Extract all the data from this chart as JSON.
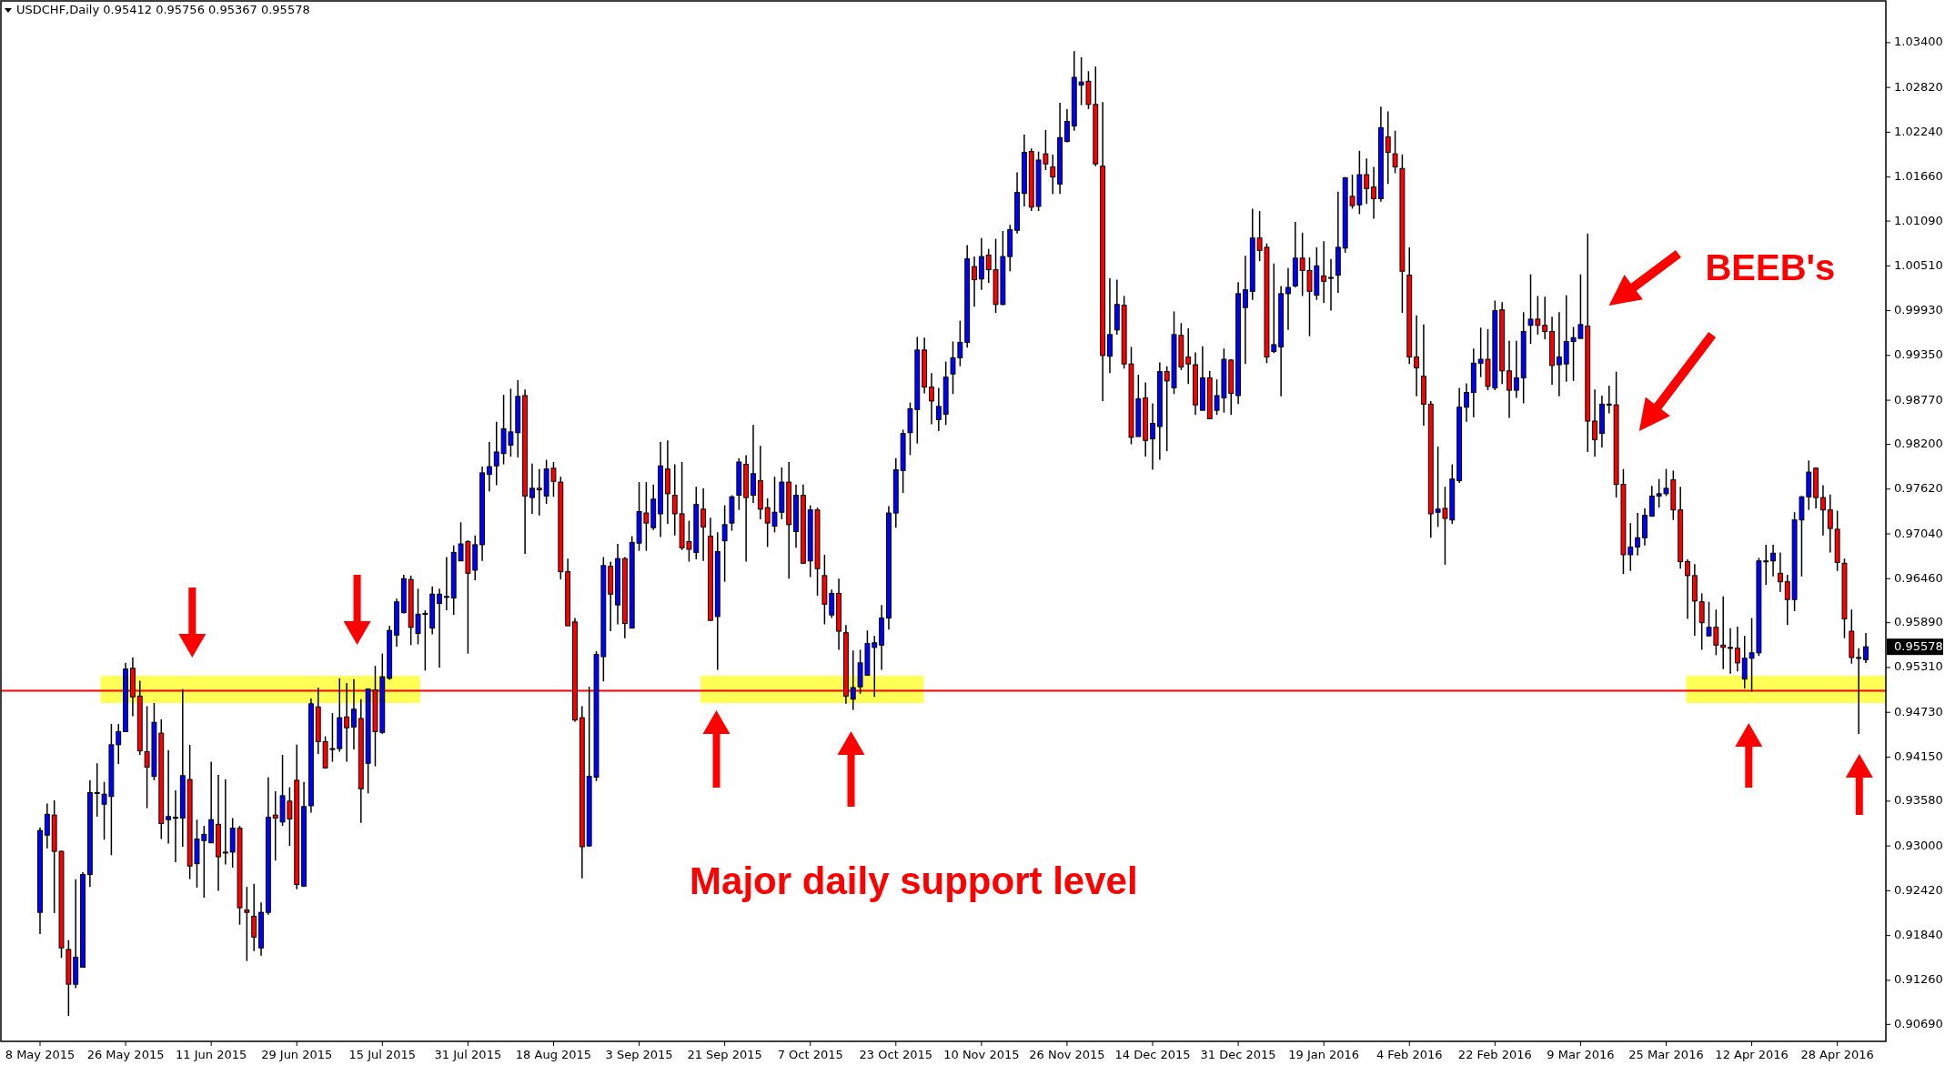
{
  "chart_data": {
    "type": "candlestick",
    "title": "USDCHF,Daily 0.95412 0.95756 0.95367 0.95578",
    "categories": [
      "8 May 2015",
      null,
      null,
      null,
      null,
      null,
      null,
      null,
      null,
      null,
      null,
      null,
      "26 May 2015",
      null,
      null,
      null,
      null,
      null,
      null,
      null,
      null,
      null,
      null,
      null,
      "11 Jun 2015",
      null,
      null,
      null,
      null,
      null,
      null,
      null,
      null,
      null,
      null,
      null,
      "29 Jun 2015",
      null,
      null,
      null,
      null,
      null,
      null,
      null,
      null,
      null,
      null,
      null,
      "15 Jul 2015",
      null,
      null,
      null,
      null,
      null,
      null,
      null,
      null,
      null,
      null,
      null,
      "31 Jul 2015",
      null,
      null,
      null,
      null,
      null,
      null,
      null,
      null,
      null,
      null,
      null,
      "18 Aug 2015",
      null,
      null,
      null,
      null,
      null,
      null,
      null,
      null,
      null,
      null,
      null,
      "3 Sep 2015",
      null,
      null,
      null,
      null,
      null,
      null,
      null,
      null,
      null,
      null,
      null,
      "21 Sep 2015",
      null,
      null,
      null,
      null,
      null,
      null,
      null,
      null,
      null,
      null,
      null,
      "7 Oct 2015",
      null,
      null,
      null,
      null,
      null,
      null,
      null,
      null,
      null,
      null,
      null,
      "23 Oct 2015",
      null,
      null,
      null,
      null,
      null,
      null,
      null,
      null,
      null,
      null,
      null,
      "10 Nov 2015",
      null,
      null,
      null,
      null,
      null,
      null,
      null,
      null,
      null,
      null,
      null,
      "26 Nov 2015",
      null,
      null,
      null,
      null,
      null,
      null,
      null,
      null,
      null,
      null,
      null,
      "14 Dec 2015",
      null,
      null,
      null,
      null,
      null,
      null,
      null,
      null,
      null,
      null,
      null,
      "31 Dec 2015",
      null,
      null,
      null,
      null,
      null,
      null,
      null,
      null,
      null,
      null,
      null,
      "19 Jan 2016",
      null,
      null,
      null,
      null,
      null,
      null,
      null,
      null,
      null,
      null,
      null,
      "4 Feb 2016",
      null,
      null,
      null,
      null,
      null,
      null,
      null,
      null,
      null,
      null,
      null,
      "22 Feb 2016",
      null,
      null,
      null,
      null,
      null,
      null,
      null,
      null,
      null,
      null,
      null,
      "9 Mar 2016",
      null,
      null,
      null,
      null,
      null,
      null,
      null,
      null,
      null,
      null,
      null,
      "25 Mar 2016",
      null,
      null,
      null,
      null,
      null,
      null,
      null,
      null,
      null,
      null,
      null,
      "12 Apr 2016",
      null,
      null,
      null,
      null,
      null,
      null,
      null,
      null,
      null,
      null,
      null,
      "28 Apr 2016",
      null,
      null,
      null,
      null
    ],
    "ohlc": [
      [
        0.9214,
        0.9324,
        0.9186,
        0.932
      ],
      [
        0.9314,
        0.9355,
        0.9297,
        0.9341
      ],
      [
        0.934,
        0.9359,
        0.9213,
        0.9293
      ],
      [
        0.9293,
        0.9294,
        0.9155,
        0.9168
      ],
      [
        0.9166,
        0.9178,
        0.908,
        0.9121
      ],
      [
        0.9121,
        0.9257,
        0.9116,
        0.9156
      ],
      [
        0.9143,
        0.9266,
        0.9143,
        0.9263
      ],
      [
        0.9263,
        0.9385,
        0.9247,
        0.9369
      ],
      [
        0.9369,
        0.9407,
        0.9338,
        0.9369
      ],
      [
        0.9354,
        0.9383,
        0.9308,
        0.9367
      ],
      [
        0.9364,
        0.9458,
        0.9288,
        0.9431
      ],
      [
        0.9431,
        0.9458,
        0.9406,
        0.9448
      ],
      [
        0.9448,
        0.9537,
        0.9448,
        0.9529
      ],
      [
        0.953,
        0.9544,
        0.9468,
        0.9493
      ],
      [
        0.9494,
        0.9514,
        0.9418,
        0.9423
      ],
      [
        0.9422,
        0.9481,
        0.9349,
        0.9402
      ],
      [
        0.939,
        0.9485,
        0.9385,
        0.946
      ],
      [
        0.9446,
        0.9464,
        0.9309,
        0.9329
      ],
      [
        0.9334,
        0.9424,
        0.9303,
        0.9338
      ],
      [
        0.9337,
        0.9372,
        0.9279,
        0.9337
      ],
      [
        0.9336,
        0.9503,
        0.9299,
        0.9391
      ],
      [
        0.9386,
        0.9431,
        0.9257,
        0.9274
      ],
      [
        0.9277,
        0.9334,
        0.9246,
        0.9309
      ],
      [
        0.9307,
        0.9326,
        0.9233,
        0.9315
      ],
      [
        0.9304,
        0.9409,
        0.9304,
        0.9334
      ],
      [
        0.9328,
        0.9392,
        0.9242,
        0.9286
      ],
      [
        0.9292,
        0.9386,
        0.9276,
        0.9292
      ],
      [
        0.9292,
        0.9336,
        0.9272,
        0.9323
      ],
      [
        0.9323,
        0.9326,
        0.9198,
        0.922
      ],
      [
        0.9217,
        0.9247,
        0.9151,
        0.9214
      ],
      [
        0.9209,
        0.9251,
        0.9164,
        0.9182
      ],
      [
        0.9168,
        0.9227,
        0.9158,
        0.9214
      ],
      [
        0.9214,
        0.9389,
        0.9211,
        0.9337
      ],
      [
        0.934,
        0.9371,
        0.9281,
        0.9336
      ],
      [
        0.9331,
        0.9418,
        0.9326,
        0.9365
      ],
      [
        0.9358,
        0.9376,
        0.93,
        0.9335
      ],
      [
        0.9385,
        0.9431,
        0.9244,
        0.925
      ],
      [
        0.9248,
        0.9383,
        0.9247,
        0.9351
      ],
      [
        0.9352,
        0.9491,
        0.9343,
        0.9484
      ],
      [
        0.948,
        0.9505,
        0.9419,
        0.9435
      ],
      [
        0.9435,
        0.9442,
        0.94,
        0.9401
      ],
      [
        0.9426,
        0.9472,
        0.9409,
        0.9426
      ],
      [
        0.9426,
        0.9517,
        0.9422,
        0.9466
      ],
      [
        0.9467,
        0.9511,
        0.9409,
        0.9453
      ],
      [
        0.9454,
        0.9516,
        0.9425,
        0.9477
      ],
      [
        0.9465,
        0.949,
        0.933,
        0.9374
      ],
      [
        0.9407,
        0.9504,
        0.9368,
        0.9503
      ],
      [
        0.9502,
        0.9533,
        0.9403,
        0.9448
      ],
      [
        0.9447,
        0.9549,
        0.9445,
        0.9519
      ],
      [
        0.9517,
        0.9585,
        0.9515,
        0.9579
      ],
      [
        0.9573,
        0.962,
        0.9558,
        0.9616
      ],
      [
        0.9602,
        0.9651,
        0.9601,
        0.9646
      ],
      [
        0.9645,
        0.965,
        0.956,
        0.9583
      ],
      [
        0.9575,
        0.9633,
        0.9561,
        0.96
      ],
      [
        0.9601,
        0.9605,
        0.9527,
        0.9601
      ],
      [
        0.9582,
        0.9636,
        0.9574,
        0.9626
      ],
      [
        0.9614,
        0.9633,
        0.9531,
        0.9626
      ],
      [
        0.9623,
        0.9674,
        0.9605,
        0.9623
      ],
      [
        0.9621,
        0.9689,
        0.9599,
        0.968
      ],
      [
        0.9669,
        0.9719,
        0.9669,
        0.9691
      ],
      [
        0.9694,
        0.9696,
        0.9549,
        0.9653
      ],
      [
        0.9657,
        0.9702,
        0.9644,
        0.969
      ],
      [
        0.969,
        0.9791,
        0.9669,
        0.9783
      ],
      [
        0.9781,
        0.9823,
        0.9759,
        0.9791
      ],
      [
        0.9792,
        0.9849,
        0.9767,
        0.981
      ],
      [
        0.9808,
        0.9884,
        0.9794,
        0.984
      ],
      [
        0.9819,
        0.9892,
        0.9804,
        0.9836
      ],
      [
        0.9835,
        0.9903,
        0.9803,
        0.9882
      ],
      [
        0.9883,
        0.9891,
        0.9678,
        0.9753
      ],
      [
        0.9751,
        0.9795,
        0.973,
        0.9763
      ],
      [
        0.9763,
        0.9788,
        0.9728,
        0.9761
      ],
      [
        0.9753,
        0.98,
        0.9743,
        0.9788
      ],
      [
        0.9789,
        0.9797,
        0.9752,
        0.9772
      ],
      [
        0.9771,
        0.9778,
        0.9645,
        0.9655
      ],
      [
        0.9655,
        0.9672,
        0.9585,
        0.9585
      ],
      [
        0.959,
        0.9595,
        0.9461,
        0.9463
      ],
      [
        0.9466,
        0.9481,
        0.9258,
        0.9299
      ],
      [
        0.93,
        0.9506,
        0.9299,
        0.939
      ],
      [
        0.9389,
        0.9552,
        0.9384,
        0.9548
      ],
      [
        0.9545,
        0.9674,
        0.9513,
        0.9663
      ],
      [
        0.9662,
        0.9668,
        0.9578,
        0.9626
      ],
      [
        0.9612,
        0.9691,
        0.9587,
        0.9672
      ],
      [
        0.9672,
        0.9674,
        0.9569,
        0.9588
      ],
      [
        0.9582,
        0.9701,
        0.9582,
        0.9693
      ],
      [
        0.9692,
        0.9771,
        0.9682,
        0.9733
      ],
      [
        0.9731,
        0.9771,
        0.9682,
        0.9718
      ],
      [
        0.9712,
        0.9768,
        0.9709,
        0.9749
      ],
      [
        0.973,
        0.9823,
        0.97,
        0.9792
      ],
      [
        0.9788,
        0.9825,
        0.9717,
        0.9756
      ],
      [
        0.9754,
        0.9794,
        0.9702,
        0.973
      ],
      [
        0.973,
        0.9797,
        0.9683,
        0.9686
      ],
      [
        0.9694,
        0.9721,
        0.9668,
        0.9684
      ],
      [
        0.968,
        0.9765,
        0.9671,
        0.9742
      ],
      [
        0.9736,
        0.9763,
        0.9669,
        0.9713
      ],
      [
        0.9701,
        0.9725,
        0.9592,
        0.9592
      ],
      [
        0.9597,
        0.9706,
        0.9528,
        0.9681
      ],
      [
        0.9695,
        0.9741,
        0.9642,
        0.9716
      ],
      [
        0.9718,
        0.9754,
        0.9708,
        0.9752
      ],
      [
        0.9754,
        0.9802,
        0.9735,
        0.9797
      ],
      [
        0.9794,
        0.9806,
        0.9668,
        0.9751
      ],
      [
        0.9754,
        0.9845,
        0.9744,
        0.9782
      ],
      [
        0.9773,
        0.9818,
        0.9723,
        0.9736
      ],
      [
        0.9738,
        0.975,
        0.9687,
        0.9718
      ],
      [
        0.9714,
        0.9778,
        0.9706,
        0.9732
      ],
      [
        0.9732,
        0.979,
        0.9723,
        0.9771
      ],
      [
        0.9771,
        0.9797,
        0.9646,
        0.9716
      ],
      [
        0.9707,
        0.9768,
        0.9686,
        0.9754
      ],
      [
        0.9754,
        0.9768,
        0.9665,
        0.9666
      ],
      [
        0.9669,
        0.9741,
        0.9648,
        0.9735
      ],
      [
        0.9735,
        0.9738,
        0.9624,
        0.9659
      ],
      [
        0.965,
        0.9677,
        0.9587,
        0.9613
      ],
      [
        0.9599,
        0.9632,
        0.9595,
        0.9627
      ],
      [
        0.9627,
        0.9646,
        0.9554,
        0.9578
      ],
      [
        0.9576,
        0.9586,
        0.9484,
        0.9494
      ],
      [
        0.949,
        0.9553,
        0.9476,
        0.9505
      ],
      [
        0.9506,
        0.9554,
        0.9497,
        0.9537
      ],
      [
        0.9521,
        0.9579,
        0.9521,
        0.9562
      ],
      [
        0.9557,
        0.9572,
        0.9493,
        0.9563
      ],
      [
        0.956,
        0.9612,
        0.9528,
        0.9595
      ],
      [
        0.9595,
        0.974,
        0.958,
        0.9731
      ],
      [
        0.9731,
        0.9802,
        0.9712,
        0.9787
      ],
      [
        0.9786,
        0.9839,
        0.9757,
        0.9834
      ],
      [
        0.9835,
        0.9874,
        0.9806,
        0.9866
      ],
      [
        0.9865,
        0.9959,
        0.9821,
        0.9942
      ],
      [
        0.9942,
        0.9958,
        0.9886,
        0.9894
      ],
      [
        0.9894,
        0.9912,
        0.9846,
        0.9876
      ],
      [
        0.9852,
        0.9893,
        0.9837,
        0.9869
      ],
      [
        0.9859,
        0.9927,
        0.9845,
        0.9907
      ],
      [
        0.9911,
        0.9953,
        0.9885,
        0.9932
      ],
      [
        0.9932,
        0.998,
        0.9921,
        0.9952
      ],
      [
        0.9952,
        1.0078,
        0.9945,
        1.006
      ],
      [
        1.005,
        1.0063,
        0.9998,
        1.0033
      ],
      [
        1.0034,
        1.0087,
        1.002,
        1.0063
      ],
      [
        1.0065,
        1.0073,
        1.0029,
        1.0046
      ],
      [
        1.0046,
        1.0086,
        0.999,
        1.0001
      ],
      [
        1.0001,
        1.0096,
        1.0,
        1.0063
      ],
      [
        1.0063,
        1.0104,
        1.0044,
        1.0098
      ],
      [
        1.0097,
        1.0172,
        1.0093,
        1.0146
      ],
      [
        1.0145,
        1.0221,
        1.0128,
        1.0198
      ],
      [
        1.0199,
        1.0203,
        1.0122,
        1.0127
      ],
      [
        1.0128,
        1.0199,
        1.0122,
        1.0188
      ],
      [
        1.0196,
        1.0227,
        1.0175,
        1.0183
      ],
      [
        1.0179,
        1.0195,
        1.0144,
        1.0166
      ],
      [
        1.0157,
        1.0262,
        1.0144,
        1.0217
      ],
      [
        1.0212,
        1.0254,
        1.0211,
        1.0238
      ],
      [
        1.0232,
        1.0329,
        1.0226,
        1.0295
      ],
      [
        1.0285,
        1.0321,
        1.0259,
        1.0289
      ],
      [
        1.029,
        1.0303,
        1.0254,
        1.026
      ],
      [
        1.026,
        1.0309,
        1.018,
        1.0183
      ],
      [
        1.018,
        1.0263,
        0.9876,
        0.9935
      ],
      [
        0.9934,
        1.0035,
        0.9912,
        0.9962
      ],
      [
        0.9968,
        1.0033,
        0.9962,
        1.0001
      ],
      [
        1.0,
        1.0012,
        0.9918,
        0.9924
      ],
      [
        0.9924,
        0.9946,
        0.982,
        0.9829
      ],
      [
        0.983,
        0.991,
        0.983,
        0.9879
      ],
      [
        0.988,
        0.99,
        0.9804,
        0.9825
      ],
      [
        0.9827,
        0.9873,
        0.9787,
        0.9847
      ],
      [
        0.9843,
        0.9926,
        0.98,
        0.9914
      ],
      [
        0.9914,
        0.9921,
        0.9811,
        0.9902
      ],
      [
        0.9893,
        0.9992,
        0.9885,
        0.9962
      ],
      [
        0.9961,
        0.9977,
        0.9916,
        0.992
      ],
      [
        0.9933,
        0.997,
        0.9898,
        0.9924
      ],
      [
        0.9923,
        0.9939,
        0.9858,
        0.9871
      ],
      [
        0.9864,
        0.9947,
        0.9864,
        0.9906
      ],
      [
        0.9906,
        0.9915,
        0.9853,
        0.9853
      ],
      [
        0.9864,
        0.9904,
        0.9858,
        0.9883
      ],
      [
        0.988,
        0.9944,
        0.9861,
        0.993
      ],
      [
        0.9929,
        0.993,
        0.9858,
        0.9886
      ],
      [
        0.9883,
        1.003,
        0.9872,
        1.0015
      ],
      [
        0.9997,
        1.0064,
        0.9924,
        1.002
      ],
      [
        1.0018,
        1.0125,
        1.0007,
        1.0087
      ],
      [
        1.0087,
        1.0122,
        1.0057,
        1.0071
      ],
      [
        1.0075,
        1.008,
        0.9925,
        0.9933
      ],
      [
        0.994,
        1.0054,
        0.9938,
        0.9949
      ],
      [
        0.9946,
        1.0025,
        0.9882,
        1.0015
      ],
      [
        1.0015,
        1.0048,
        0.9968,
        1.0023
      ],
      [
        1.0025,
        1.0108,
        1.0023,
        1.0061
      ],
      [
        1.0061,
        1.0094,
        1.0012,
        1.0045
      ],
      [
        1.0045,
        1.0062,
        0.996,
        1.0018
      ],
      [
        1.0013,
        1.0075,
        1.0007,
        1.0051
      ],
      [
        1.0038,
        1.0083,
        1.0003,
        1.0031
      ],
      [
        1.0036,
        1.006,
        0.9993,
        1.0036
      ],
      [
        1.0039,
        1.0147,
        1.0016,
        1.0075
      ],
      [
        1.0074,
        1.0166,
        1.0068,
        1.0165
      ],
      [
        1.0141,
        1.0169,
        1.0125,
        1.0129
      ],
      [
        1.013,
        1.02,
        1.0118,
        1.0169
      ],
      [
        1.0169,
        1.019,
        1.0131,
        1.0151
      ],
      [
        1.0153,
        1.0179,
        1.0112,
        1.0138
      ],
      [
        1.0138,
        1.0257,
        1.0134,
        1.023
      ],
      [
        1.0218,
        1.0251,
        1.0157,
        1.0198
      ],
      [
        1.0196,
        1.0226,
        1.0171,
        1.0179
      ],
      [
        1.0177,
        1.0195,
        0.999,
        1.0044
      ],
      [
        1.0039,
        1.0075,
        0.9924,
        0.9933
      ],
      [
        0.9933,
        0.9987,
        0.9882,
        0.9919
      ],
      [
        0.9908,
        0.9975,
        0.9844,
        0.9872
      ],
      [
        0.9872,
        0.9876,
        0.9699,
        0.973
      ],
      [
        0.9732,
        0.9817,
        0.9713,
        0.9736
      ],
      [
        0.9737,
        0.9765,
        0.9664,
        0.9724
      ],
      [
        0.9722,
        0.9794,
        0.9717,
        0.9775
      ],
      [
        0.9773,
        0.9893,
        0.977,
        0.9868
      ],
      [
        0.9868,
        0.9899,
        0.9849,
        0.9887
      ],
      [
        0.9887,
        0.9944,
        0.9855,
        0.9925
      ],
      [
        0.9925,
        0.9971,
        0.9907,
        0.993
      ],
      [
        0.993,
        0.9969,
        0.989,
        0.9895
      ],
      [
        0.9893,
        1.0006,
        0.989,
        0.9993
      ],
      [
        0.9994,
        1.0004,
        0.9898,
        0.9915
      ],
      [
        0.9915,
        0.9954,
        0.9854,
        0.989
      ],
      [
        0.989,
        0.9954,
        0.988,
        0.9906
      ],
      [
        0.9906,
        0.9991,
        0.9873,
        0.9966
      ],
      [
        0.9974,
        1.004,
        0.995,
        0.9982
      ],
      [
        0.9982,
        1.0012,
        0.9962,
        0.9974
      ],
      [
        0.9974,
        1.0011,
        0.9956,
        0.9966
      ],
      [
        0.9966,
        0.9985,
        0.9897,
        0.9922
      ],
      [
        0.9923,
        0.9991,
        0.9882,
        0.9933
      ],
      [
        0.9924,
        1.0013,
        0.9901,
        0.9953
      ],
      [
        0.9953,
        0.9972,
        0.9902,
        0.9958
      ],
      [
        0.9957,
        1.004,
        0.9957,
        0.9975
      ],
      [
        0.9973,
        1.0093,
        0.981,
        0.985
      ],
      [
        0.985,
        0.9891,
        0.9804,
        0.9826
      ],
      [
        0.9834,
        0.9883,
        0.9816,
        0.9872
      ],
      [
        0.9872,
        0.9896,
        0.986,
        0.9872
      ],
      [
        0.9871,
        0.9914,
        0.9751,
        0.9768
      ],
      [
        0.9768,
        0.9788,
        0.9652,
        0.9677
      ],
      [
        0.9677,
        0.9718,
        0.9656,
        0.9687
      ],
      [
        0.9687,
        0.9731,
        0.9676,
        0.9699
      ],
      [
        0.9699,
        0.9737,
        0.9689,
        0.9728
      ],
      [
        0.9727,
        0.9766,
        0.9726,
        0.9753
      ],
      [
        0.9753,
        0.9775,
        0.9738,
        0.9756
      ],
      [
        0.9756,
        0.9788,
        0.9753,
        0.9763
      ],
      [
        0.9774,
        0.9786,
        0.9722,
        0.9735
      ],
      [
        0.9735,
        0.9765,
        0.9659,
        0.9668
      ],
      [
        0.9668,
        0.9671,
        0.9594,
        0.965
      ],
      [
        0.965,
        0.9665,
        0.9572,
        0.9617
      ],
      [
        0.9616,
        0.9627,
        0.9554,
        0.9589
      ],
      [
        0.9572,
        0.9616,
        0.9571,
        0.9583
      ],
      [
        0.9583,
        0.9606,
        0.9547,
        0.956
      ],
      [
        0.956,
        0.9623,
        0.9529,
        0.9557
      ],
      [
        0.9557,
        0.9582,
        0.9523,
        0.9557
      ],
      [
        0.9556,
        0.9584,
        0.9526,
        0.9537
      ],
      [
        0.9516,
        0.9572,
        0.9504,
        0.9543
      ],
      [
        0.9543,
        0.9595,
        0.95,
        0.955
      ],
      [
        0.955,
        0.9673,
        0.9546,
        0.9669
      ],
      [
        0.9669,
        0.969,
        0.9638,
        0.9669
      ],
      [
        0.9669,
        0.969,
        0.9649,
        0.9679
      ],
      [
        0.9653,
        0.968,
        0.9629,
        0.9642
      ],
      [
        0.9642,
        0.9651,
        0.9586,
        0.9619
      ],
      [
        0.9619,
        0.9732,
        0.9604,
        0.9722
      ],
      [
        0.9722,
        0.9753,
        0.9649,
        0.9752
      ],
      [
        0.9752,
        0.9799,
        0.9735,
        0.9784
      ],
      [
        0.9789,
        0.979,
        0.9737,
        0.9751
      ],
      [
        0.9751,
        0.9767,
        0.9702,
        0.9735
      ],
      [
        0.9735,
        0.9755,
        0.968,
        0.9711
      ],
      [
        0.971,
        0.9734,
        0.9656,
        0.9667
      ],
      [
        0.9666,
        0.9672,
        0.9569,
        0.9594
      ],
      [
        0.9578,
        0.9606,
        0.9536,
        0.9544
      ],
      [
        0.9544,
        0.9556,
        0.9445,
        0.9544
      ],
      [
        0.95412,
        0.95756,
        0.95367,
        0.95578
      ]
    ],
    "colors": [
      "#0000ff",
      "#0000ff",
      "#ff0000",
      "#ff0000",
      "#ff0000",
      "#0000ff",
      "#0000ff",
      "#0000ff",
      "#0000ff",
      "#0000ff",
      "#0000ff",
      "#0000ff",
      "#0000ff",
      "#ff0000",
      "#ff0000",
      "#ff0000",
      "#0000ff",
      "#ff0000",
      "#0000ff",
      "#0000ff",
      "#0000ff",
      "#ff0000",
      "#0000ff",
      "#0000ff",
      "#0000ff",
      "#ff0000",
      "#0000ff",
      "#0000ff",
      "#ff0000",
      "#ff0000",
      "#ff0000",
      "#0000ff",
      "#0000ff",
      "#ff0000",
      "#0000ff",
      "#ff0000",
      "#ff0000",
      "#0000ff",
      "#0000ff",
      "#ff0000",
      "#ff0000",
      "#0000ff",
      "#0000ff",
      "#ff0000",
      "#0000ff",
      "#ff0000",
      "#0000ff",
      "#ff0000",
      "#0000ff",
      "#0000ff",
      "#0000ff",
      "#0000ff",
      "#ff0000",
      "#0000ff",
      "#0000ff",
      "#0000ff",
      "#0000ff",
      "#0000ff",
      "#0000ff",
      "#0000ff",
      "#ff0000",
      "#0000ff",
      "#0000ff",
      "#0000ff",
      "#0000ff",
      "#0000ff",
      "#0000ff",
      "#0000ff",
      "#ff0000",
      "#0000ff",
      "#ff0000",
      "#0000ff",
      "#ff0000",
      "#ff0000",
      "#ff0000",
      "#ff0000",
      "#ff0000",
      "#0000ff",
      "#0000ff",
      "#0000ff",
      "#ff0000",
      "#0000ff",
      "#ff0000",
      "#0000ff",
      "#0000ff",
      "#ff0000",
      "#0000ff",
      "#0000ff",
      "#ff0000",
      "#ff0000",
      "#ff0000",
      "#ff0000",
      "#0000ff",
      "#ff0000",
      "#ff0000",
      "#0000ff",
      "#0000ff",
      "#0000ff",
      "#0000ff",
      "#ff0000",
      "#0000ff",
      "#ff0000",
      "#ff0000",
      "#0000ff",
      "#0000ff",
      "#ff0000",
      "#0000ff",
      "#ff0000",
      "#0000ff",
      "#ff0000",
      "#ff0000",
      "#0000ff",
      "#ff0000",
      "#ff0000",
      "#0000ff",
      "#0000ff",
      "#0000ff",
      "#0000ff",
      "#0000ff",
      "#0000ff",
      "#0000ff",
      "#0000ff",
      "#0000ff",
      "#0000ff",
      "#ff0000",
      "#ff0000",
      "#0000ff",
      "#0000ff",
      "#0000ff",
      "#0000ff",
      "#0000ff",
      "#ff0000",
      "#0000ff",
      "#ff0000",
      "#ff0000",
      "#0000ff",
      "#0000ff",
      "#0000ff",
      "#0000ff",
      "#ff0000",
      "#0000ff",
      "#ff0000",
      "#ff0000",
      "#0000ff",
      "#0000ff",
      "#0000ff",
      "#0000ff",
      "#ff0000",
      "#ff0000",
      "#ff0000",
      "#0000ff",
      "#0000ff",
      "#ff0000",
      "#ff0000",
      "#0000ff",
      "#ff0000",
      "#0000ff",
      "#0000ff",
      "#ff0000",
      "#0000ff",
      "#ff0000",
      "#ff0000",
      "#ff0000",
      "#0000ff",
      "#ff0000",
      "#0000ff",
      "#0000ff",
      "#ff0000",
      "#0000ff",
      "#0000ff",
      "#0000ff",
      "#ff0000",
      "#ff0000",
      "#0000ff",
      "#0000ff",
      "#0000ff",
      "#0000ff",
      "#ff0000",
      "#ff0000",
      "#0000ff",
      "#ff0000",
      "#0000ff",
      "#0000ff",
      "#0000ff",
      "#ff0000",
      "#0000ff",
      "#ff0000",
      "#ff0000",
      "#0000ff",
      "#ff0000",
      "#ff0000",
      "#ff0000",
      "#ff0000",
      "#ff0000",
      "#ff0000",
      "#ff0000",
      "#0000ff",
      "#ff0000",
      "#0000ff",
      "#0000ff",
      "#0000ff",
      "#0000ff",
      "#0000ff",
      "#ff0000",
      "#0000ff",
      "#ff0000",
      "#ff0000",
      "#0000ff",
      "#0000ff",
      "#0000ff",
      "#ff0000",
      "#ff0000",
      "#ff0000",
      "#0000ff",
      "#0000ff",
      "#0000ff",
      "#0000ff",
      "#ff0000",
      "#ff0000",
      "#0000ff",
      "#0000ff",
      "#ff0000",
      "#ff0000",
      "#0000ff",
      "#0000ff",
      "#0000ff",
      "#0000ff",
      "#0000ff",
      "#0000ff",
      "#ff0000",
      "#ff0000",
      "#ff0000",
      "#ff0000",
      "#ff0000",
      "#0000ff",
      "#ff0000",
      "#ff0000",
      "#0000ff",
      "#ff0000",
      "#0000ff",
      "#0000ff",
      "#0000ff",
      "#0000ff",
      "#0000ff",
      "#ff0000",
      "#ff0000",
      "#0000ff",
      "#0000ff",
      "#0000ff",
      "#ff0000",
      "#ff0000",
      "#ff0000",
      "#ff0000",
      "#ff0000",
      "#ff0000",
      "#0000ff",
      "#0000ff"
    ],
    "ylim": [
      0.9047,
      1.0394
    ],
    "yticks": [
      {
        "value": 1.034,
        "label": "1.03400"
      },
      {
        "value": 1.0282,
        "label": "1.02820"
      },
      {
        "value": 1.0224,
        "label": "1.02240"
      },
      {
        "value": 1.0166,
        "label": "1.01660"
      },
      {
        "value": 1.0109,
        "label": "1.01090"
      },
      {
        "value": 1.0051,
        "label": "1.00510"
      },
      {
        "value": 0.9993,
        "label": "0.99930"
      },
      {
        "value": 0.9935,
        "label": "0.99350"
      },
      {
        "value": 0.9877,
        "label": "0.98770"
      },
      {
        "value": 0.982,
        "label": "0.98200"
      },
      {
        "value": 0.9762,
        "label": "0.97620"
      },
      {
        "value": 0.9704,
        "label": "0.97040"
      },
      {
        "value": 0.9646,
        "label": "0.96460"
      },
      {
        "value": 0.9589,
        "label": "0.95890"
      },
      {
        "value": 0.9531,
        "label": "0.95310"
      },
      {
        "value": 0.9473,
        "label": "0.94730"
      },
      {
        "value": 0.9415,
        "label": "0.94150"
      },
      {
        "value": 0.9358,
        "label": "0.93580"
      },
      {
        "value": 0.93,
        "label": "0.93000"
      },
      {
        "value": 0.9242,
        "label": "0.92420"
      },
      {
        "value": 0.9184,
        "label": "0.91840"
      },
      {
        "value": 0.9126,
        "label": "0.91260"
      },
      {
        "value": 0.9069,
        "label": "0.90690"
      }
    ],
    "ref_lines": [
      {
        "axis": "y",
        "value": 0.9501,
        "color": "#ff0000",
        "line_style": "solid"
      }
    ],
    "annotations": [
      "BEEB's",
      "Major daily support level",
      "0.95578"
    ],
    "grid": false
  }
}
